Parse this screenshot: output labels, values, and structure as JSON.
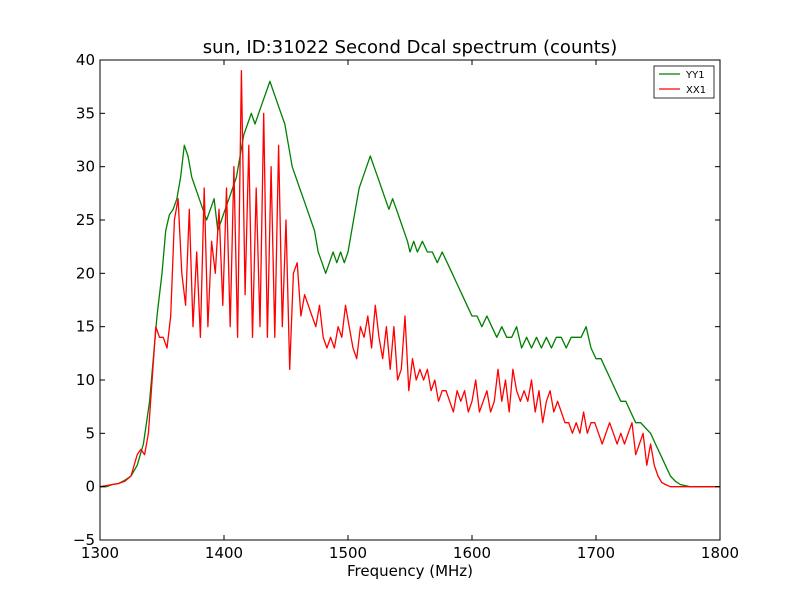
{
  "chart_data": {
    "type": "line",
    "title": "sun, ID:31022 Second Dcal spectrum (counts)",
    "xlabel": "Frequency (MHz)",
    "ylabel": "",
    "xlim": [
      1300,
      1800
    ],
    "ylim": [
      -5,
      40
    ],
    "xticks": [
      1300,
      1400,
      1500,
      1600,
      1700,
      1800
    ],
    "yticks": [
      -5,
      0,
      5,
      10,
      15,
      20,
      25,
      30,
      35,
      40
    ],
    "ytick_labels": [
      "−5",
      "0",
      "5",
      "10",
      "15",
      "20",
      "25",
      "30",
      "35",
      "40"
    ],
    "grid": false,
    "legend_position": "top-right",
    "series": [
      {
        "name": "YY1",
        "color": "#008000",
        "x": [
          1300,
          1305,
          1310,
          1315,
          1320,
          1325,
          1330,
          1335,
          1340,
          1343,
          1346,
          1350,
          1353,
          1356,
          1359,
          1362,
          1365,
          1368,
          1371,
          1374,
          1377,
          1380,
          1383,
          1386,
          1389,
          1392,
          1395,
          1398,
          1401,
          1404,
          1407,
          1410,
          1413,
          1416,
          1419,
          1422,
          1425,
          1428,
          1431,
          1434,
          1437,
          1440,
          1443,
          1446,
          1449,
          1452,
          1455,
          1458,
          1461,
          1464,
          1467,
          1470,
          1473,
          1476,
          1479,
          1482,
          1485,
          1488,
          1491,
          1494,
          1497,
          1500,
          1503,
          1506,
          1509,
          1512,
          1515,
          1518,
          1521,
          1524,
          1527,
          1530,
          1533,
          1536,
          1539,
          1542,
          1545,
          1548,
          1550,
          1553,
          1556,
          1560,
          1564,
          1568,
          1572,
          1576,
          1580,
          1584,
          1588,
          1592,
          1596,
          1600,
          1604,
          1608,
          1612,
          1616,
          1620,
          1624,
          1628,
          1632,
          1636,
          1640,
          1644,
          1648,
          1652,
          1656,
          1660,
          1664,
          1668,
          1672,
          1676,
          1680,
          1684,
          1688,
          1692,
          1696,
          1700,
          1704,
          1708,
          1712,
          1716,
          1720,
          1724,
          1728,
          1732,
          1736,
          1740,
          1744,
          1748,
          1752,
          1756,
          1760,
          1764,
          1768,
          1772,
          1776,
          1780,
          1785,
          1790,
          1795,
          1800
        ],
        "y": [
          0,
          0,
          0.2,
          0.3,
          0.6,
          1,
          2,
          4,
          8,
          12,
          16,
          20,
          24,
          25.5,
          26,
          27,
          29,
          32,
          31,
          29,
          28,
          27,
          26,
          25,
          26,
          27,
          24,
          25,
          26,
          27,
          28,
          29,
          31,
          33,
          34,
          35,
          34,
          35,
          36,
          37,
          38,
          37,
          36,
          35,
          34,
          32,
          30,
          29,
          28,
          27,
          26,
          25,
          24,
          22,
          21,
          20,
          21,
          22,
          21,
          22,
          21,
          22,
          24,
          26,
          28,
          29,
          30,
          31,
          30,
          29,
          28,
          27,
          26,
          27,
          26,
          25,
          24,
          23,
          22,
          23,
          22,
          23,
          22,
          22,
          21,
          22,
          21,
          20,
          19,
          18,
          17,
          16,
          16,
          15,
          16,
          15,
          14,
          15,
          14,
          14,
          15,
          13,
          14,
          13,
          14,
          13,
          14,
          13,
          14,
          14,
          13,
          14,
          14,
          14,
          15,
          13,
          12,
          12,
          11,
          10,
          9,
          8,
          8,
          7,
          6,
          6,
          5.5,
          5,
          4,
          3,
          2,
          1,
          0.5,
          0.2,
          0.1,
          0,
          0,
          0,
          0,
          0,
          0
        ]
      },
      {
        "name": "XX1",
        "color": "#ff0000",
        "x": [
          1300,
          1305,
          1310,
          1315,
          1320,
          1325,
          1330,
          1333,
          1336,
          1339,
          1342,
          1345,
          1348,
          1351,
          1354,
          1357,
          1360,
          1363,
          1366,
          1369,
          1372,
          1375,
          1378,
          1381,
          1384,
          1387,
          1390,
          1393,
          1396,
          1399,
          1402,
          1405,
          1408,
          1411,
          1414,
          1417,
          1420,
          1423,
          1426,
          1429,
          1432,
          1435,
          1438,
          1441,
          1444,
          1447,
          1450,
          1453,
          1456,
          1459,
          1462,
          1465,
          1468,
          1471,
          1474,
          1477,
          1480,
          1483,
          1486,
          1489,
          1492,
          1495,
          1498,
          1501,
          1504,
          1507,
          1510,
          1513,
          1516,
          1519,
          1522,
          1525,
          1528,
          1531,
          1534,
          1537,
          1540,
          1543,
          1546,
          1549,
          1552,
          1555,
          1558,
          1561,
          1564,
          1567,
          1570,
          1573,
          1576,
          1579,
          1582,
          1585,
          1588,
          1591,
          1594,
          1597,
          1600,
          1603,
          1606,
          1609,
          1612,
          1615,
          1618,
          1621,
          1624,
          1627,
          1630,
          1633,
          1636,
          1639,
          1642,
          1645,
          1648,
          1651,
          1654,
          1657,
          1660,
          1663,
          1666,
          1669,
          1672,
          1675,
          1678,
          1681,
          1684,
          1687,
          1690,
          1693,
          1696,
          1699,
          1702,
          1705,
          1708,
          1711,
          1714,
          1717,
          1720,
          1723,
          1726,
          1729,
          1732,
          1735,
          1738,
          1741,
          1744,
          1747,
          1750,
          1753,
          1756,
          1760,
          1765,
          1770,
          1780,
          1790,
          1800
        ],
        "y": [
          0,
          0.1,
          0.2,
          0.3,
          0.5,
          1,
          3,
          3.5,
          3,
          5,
          10,
          15,
          14,
          14,
          13,
          16,
          25,
          27,
          20,
          17,
          26,
          15,
          22,
          14,
          28,
          15,
          23,
          20,
          26,
          17,
          28,
          15,
          30,
          14,
          39,
          18,
          32,
          14,
          28,
          15,
          35,
          14,
          30,
          14,
          32,
          15,
          25,
          11,
          20,
          21,
          16,
          18,
          17,
          16,
          15,
          17,
          14,
          13,
          14,
          13,
          15,
          14,
          17,
          15,
          13,
          12,
          15,
          14,
          16,
          13,
          17,
          14,
          12,
          15,
          11,
          15,
          10,
          11,
          16,
          9,
          12,
          10,
          11,
          10,
          11,
          9,
          10,
          8,
          9,
          9,
          8,
          7,
          9,
          8,
          9,
          7,
          8,
          10,
          7,
          8,
          9,
          7,
          8,
          11,
          8,
          10,
          7,
          11,
          9,
          8,
          9,
          8,
          10,
          7,
          9,
          6,
          8,
          9,
          7,
          8,
          7,
          6,
          6,
          5,
          6,
          5,
          7,
          5,
          6,
          6,
          5,
          4,
          5,
          6,
          5,
          4,
          5,
          4,
          5,
          6,
          3,
          4,
          5,
          2,
          4,
          2,
          1,
          0.4,
          0.2,
          0,
          0,
          0,
          0,
          0,
          0
        ]
      }
    ]
  }
}
